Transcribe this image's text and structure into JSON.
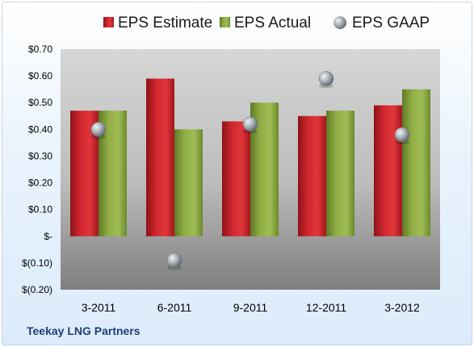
{
  "company": "Teekay LNG Partners",
  "chart_data": {
    "type": "bar",
    "categories": [
      "3-2011",
      "6-2011",
      "9-2011",
      "12-2011",
      "3-2012"
    ],
    "series": [
      {
        "name": "EPS Estimate",
        "kind": "bar",
        "color": "#c8202b",
        "values": [
          0.47,
          0.59,
          0.43,
          0.45,
          0.49
        ]
      },
      {
        "name": "EPS Actual",
        "kind": "bar",
        "color": "#8aa640",
        "values": [
          0.47,
          0.4,
          0.5,
          0.47,
          0.55
        ]
      },
      {
        "name": "EPS GAAP",
        "kind": "marker",
        "color": "#9aa3ab",
        "values": [
          0.4,
          -0.09,
          0.42,
          0.59,
          0.38
        ]
      }
    ],
    "ylim": [
      -0.2,
      0.7
    ],
    "yticks": [
      -0.2,
      -0.1,
      0,
      0.1,
      0.2,
      0.3,
      0.4,
      0.5,
      0.6,
      0.7
    ],
    "ytick_labels": [
      "$(0.20)",
      "$(0.10)",
      "$-",
      "$0.10",
      "$0.20",
      "$0.30",
      "$0.40",
      "$0.50",
      "$0.60",
      "$0.70"
    ],
    "legend_position": "top",
    "grid": false
  }
}
